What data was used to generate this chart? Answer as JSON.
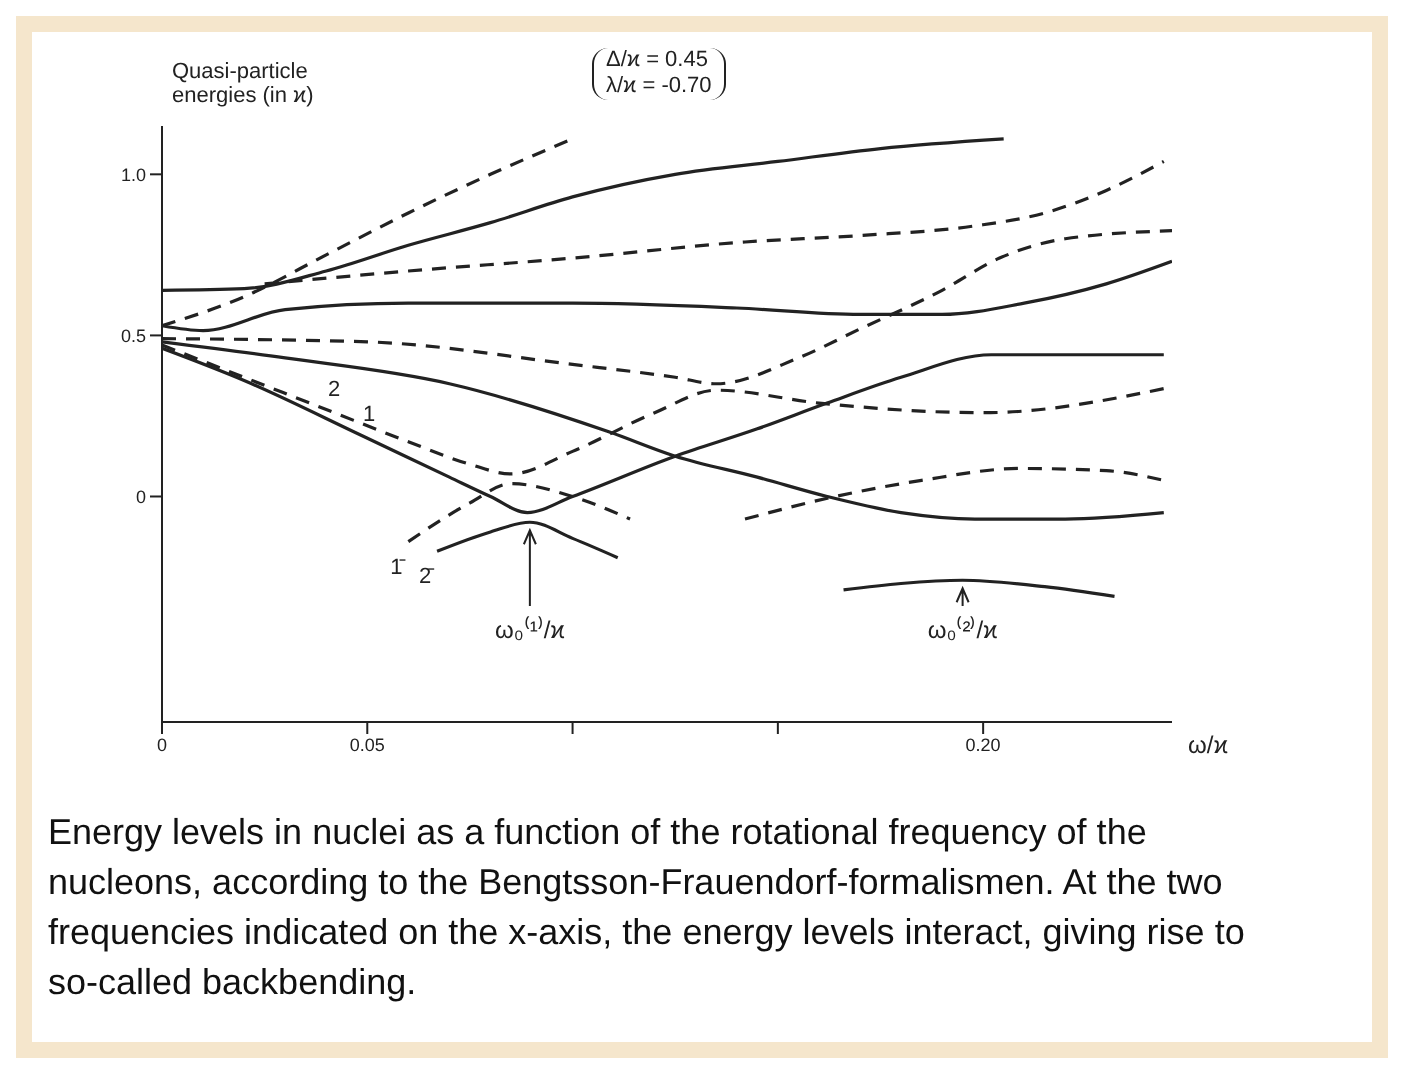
{
  "chart_data": {
    "type": "line",
    "ylabel": "Quasi-particle energies (in ϰ)",
    "xlabel": "ω/ϰ",
    "xlim": [
      0,
      0.246
    ],
    "ylim": [
      -0.7,
      1.15
    ],
    "xticks": [
      0,
      0.05,
      {
        "value": 0.1,
        "label": null
      },
      {
        "value": 0.15,
        "label": null
      },
      {
        "value": 0.2,
        "label": "0.20"
      }
    ],
    "yticks": [
      0,
      0.5,
      {
        "value": 1,
        "label": "1.0"
      }
    ],
    "grid": false,
    "legend": false,
    "marker": "none",
    "series": [
      {
        "color": "#222222",
        "line_style": "solid",
        "x": [
          0,
          0.02,
          0.04,
          0.06,
          0.08,
          0.1,
          0.125,
          0.15,
          0.175,
          0.205
        ],
        "values": [
          0.64,
          0.645,
          0.7,
          0.78,
          0.85,
          0.93,
          1.0,
          1.04,
          1.08,
          1.11
        ]
      },
      {
        "color": "#222222",
        "line_style": "dashed",
        "x": [
          0,
          0.02,
          0.04,
          0.06,
          0.08,
          0.1
        ],
        "values": [
          0.53,
          0.62,
          0.75,
          0.88,
          1.0,
          1.11
        ]
      },
      {
        "color": "#222222",
        "line_style": "dashed",
        "x": [
          0.025,
          0.06,
          0.1,
          0.142,
          0.17,
          0.198,
          0.215,
          0.23,
          0.244
        ],
        "values": [
          0.66,
          0.7,
          0.74,
          0.79,
          0.81,
          0.84,
          0.88,
          0.95,
          1.04
        ]
      },
      {
        "color": "#222222",
        "line_style": "solid",
        "x": [
          0,
          0.01,
          0.03,
          0.06,
          0.1,
          0.14,
          0.17,
          0.19,
          0.21,
          0.23,
          0.246
        ],
        "values": [
          0.53,
          0.515,
          0.58,
          0.6,
          0.6,
          0.585,
          0.565,
          0.565,
          0.6,
          0.66,
          0.73
        ]
      },
      {
        "color": "#222222",
        "line_style": "dashed",
        "x": [
          0,
          0.05,
          0.1,
          0.125,
          0.135,
          0.155,
          0.17,
          0.19,
          0.204,
          0.22,
          0.246
        ],
        "values": [
          0.49,
          0.48,
          0.41,
          0.37,
          0.35,
          0.43,
          0.52,
          0.64,
          0.74,
          0.8,
          0.825
        ]
      },
      {
        "color": "#222222",
        "line_style": "dashed",
        "x": [
          0,
          0.02,
          0.04,
          0.06,
          0.075,
          0.085,
          0.1,
          0.12,
          0.135,
          0.16,
          0.2,
          0.246
        ],
        "values": [
          0.47,
          0.37,
          0.27,
          0.17,
          0.1,
          0.07,
          0.14,
          0.26,
          0.33,
          0.29,
          0.26,
          0.34
        ]
      },
      {
        "color": "#222222",
        "line_style": "dashed",
        "x": [
          0.06,
          0.075,
          0.085,
          0.1,
          0.114
        ],
        "values": [
          -0.14,
          -0.02,
          0.04,
          0.0,
          -0.07
        ]
      },
      {
        "color": "#222222",
        "line_style": "solid",
        "x": [
          0,
          0.02,
          0.0485,
          0.07,
          0.08,
          0.089,
          0.1,
          0.125,
          0.145,
          0.162,
          0.18,
          0.202,
          0.244
        ],
        "values": [
          0.46,
          0.36,
          0.19,
          0.06,
          0.0,
          -0.05,
          0.0,
          0.125,
          0.21,
          0.29,
          0.37,
          0.44,
          0.44
        ]
      },
      {
        "color": "#222222",
        "line_style": "solid",
        "x": [
          0.067,
          0.08,
          0.0896,
          0.1,
          0.111
        ],
        "values": [
          -0.17,
          -0.11,
          -0.08,
          -0.13,
          -0.19
        ]
      },
      {
        "color": "#222222",
        "line_style": "solid",
        "x": [
          0,
          0.03,
          0.07,
          0.109,
          0.125,
          0.145,
          0.162,
          0.18,
          0.198,
          0.22,
          0.244
        ],
        "values": [
          0.48,
          0.43,
          0.35,
          0.2,
          0.125,
          0.06,
          0.0,
          -0.05,
          -0.07,
          -0.07,
          -0.05
        ]
      },
      {
        "color": "#222222",
        "line_style": "dashed",
        "x": [
          0.142,
          0.164,
          0.185,
          0.209,
          0.23,
          0.244
        ],
        "values": [
          -0.07,
          0.0,
          0.05,
          0.087,
          0.08,
          0.05
        ]
      },
      {
        "color": "#222222",
        "line_style": "solid",
        "x": [
          0.166,
          0.18,
          0.195,
          0.215,
          0.232
        ],
        "values": [
          -0.29,
          -0.27,
          -0.26,
          -0.28,
          -0.31
        ]
      }
    ],
    "annotations": [
      "Δ/ϰ = 0.45",
      "λ/ϰ = -0.70",
      {
        "text": "1",
        "x": 0.0485,
        "y": 0.19
      },
      {
        "text": "2",
        "x": 0.04,
        "y": 0.27
      },
      {
        "text": "1̄",
        "x": 0.06,
        "y": -0.14
      },
      {
        "text": "2̄",
        "x": 0.067,
        "y": -0.17
      },
      {
        "text": "ω₀⁽¹⁾/ϰ",
        "x": 0.0896,
        "y": -0.08
      },
      {
        "text": "ω₀⁽²⁾/ϰ",
        "x": 0.195,
        "y": -0.26
      },
      "Energy levels in nuclei as a function of the rotational frequency of the nucleons, according to the Bengtsson-Frauendorf-formalismen. At the two frequencies indicated on the x-axis, the energy levels interact, giving rise to so-called backbending."
    ]
  }
}
